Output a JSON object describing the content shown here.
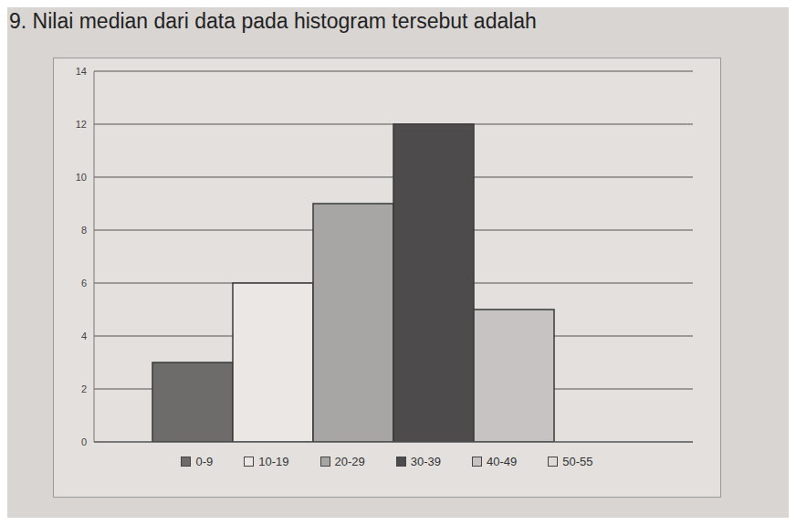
{
  "chart_data": {
    "type": "bar",
    "title": "9. Nilai median dari data pada histogram tersebut adalah",
    "categories": [
      "0-9",
      "10-19",
      "20-29",
      "30-39",
      "40-49",
      "50-55"
    ],
    "values": [
      3,
      6,
      9,
      12,
      5,
      0
    ],
    "colors": [
      "#6e6c6b",
      "#ebe7e5",
      "#a8a6a5",
      "#4d4b4b",
      "#c6c3c2",
      "#dedbd9"
    ],
    "ylim": [
      0,
      14
    ],
    "yticks": [
      0,
      2,
      4,
      6,
      8,
      10,
      12,
      14
    ],
    "grid": true,
    "legend": "bottom",
    "tick_labels": "y"
  }
}
